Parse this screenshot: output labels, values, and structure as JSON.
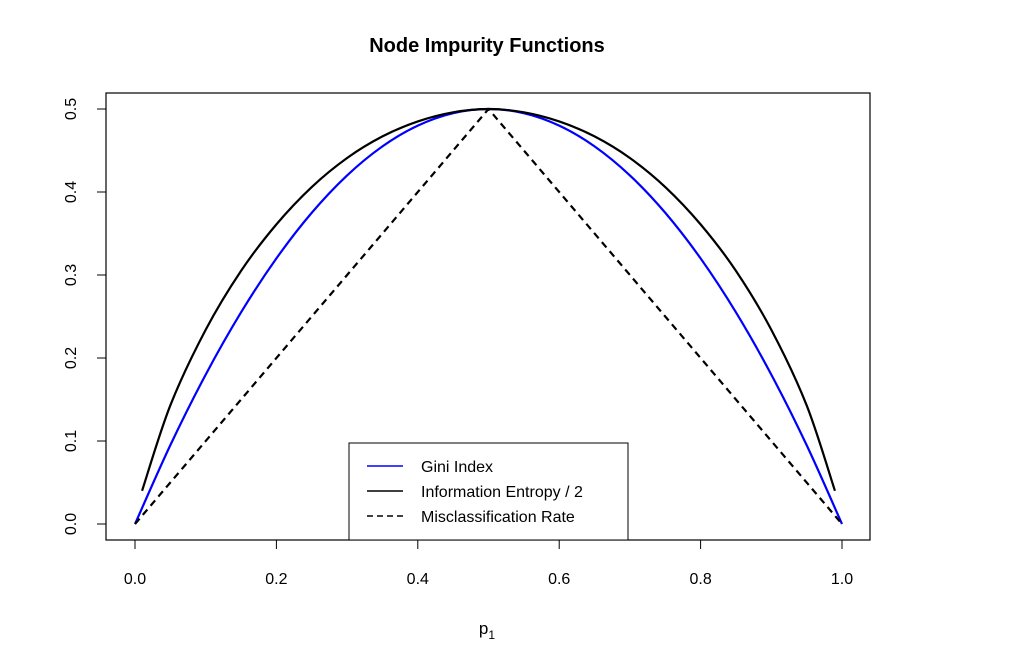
{
  "chart_data": {
    "type": "line",
    "title": "Node Impurity Functions",
    "xlabel": "p",
    "xlabel_subscript": "1",
    "ylabel": "",
    "xlim": [
      0.0,
      1.0
    ],
    "ylim": [
      0.0,
      0.5
    ],
    "x_ticks": [
      "0.0",
      "0.2",
      "0.4",
      "0.6",
      "0.8",
      "1.0"
    ],
    "y_ticks": [
      "0.0",
      "0.1",
      "0.2",
      "0.3",
      "0.4",
      "0.5"
    ],
    "grid": false,
    "legend_position": "bottom-center",
    "series": [
      {
        "name": "Gini Index",
        "color": "#0000ff",
        "dash": "solid",
        "x": [
          0.0,
          0.05,
          0.1,
          0.15,
          0.2,
          0.25,
          0.3,
          0.35,
          0.4,
          0.45,
          0.5,
          0.55,
          0.6,
          0.65,
          0.7,
          0.75,
          0.8,
          0.85,
          0.9,
          0.95,
          1.0
        ],
        "y": [
          0.0,
          0.095,
          0.18,
          0.255,
          0.32,
          0.375,
          0.42,
          0.455,
          0.48,
          0.495,
          0.5,
          0.495,
          0.48,
          0.455,
          0.42,
          0.375,
          0.32,
          0.255,
          0.18,
          0.095,
          0.0
        ]
      },
      {
        "name": "Information Entropy / 2",
        "color": "#000000",
        "dash": "solid",
        "x": [
          0.01,
          0.05,
          0.1,
          0.15,
          0.2,
          0.25,
          0.3,
          0.35,
          0.4,
          0.45,
          0.5,
          0.55,
          0.6,
          0.65,
          0.7,
          0.75,
          0.8,
          0.85,
          0.9,
          0.95,
          0.99
        ],
        "y": [
          0.04,
          0.143,
          0.234,
          0.305,
          0.361,
          0.406,
          0.441,
          0.467,
          0.485,
          0.496,
          0.5,
          0.496,
          0.485,
          0.467,
          0.441,
          0.406,
          0.361,
          0.305,
          0.234,
          0.143,
          0.04
        ]
      },
      {
        "name": "Misclassification Rate",
        "color": "#000000",
        "dash": "dashed",
        "x": [
          0.0,
          0.5,
          1.0
        ],
        "y": [
          0.0,
          0.5,
          0.0
        ]
      }
    ]
  }
}
